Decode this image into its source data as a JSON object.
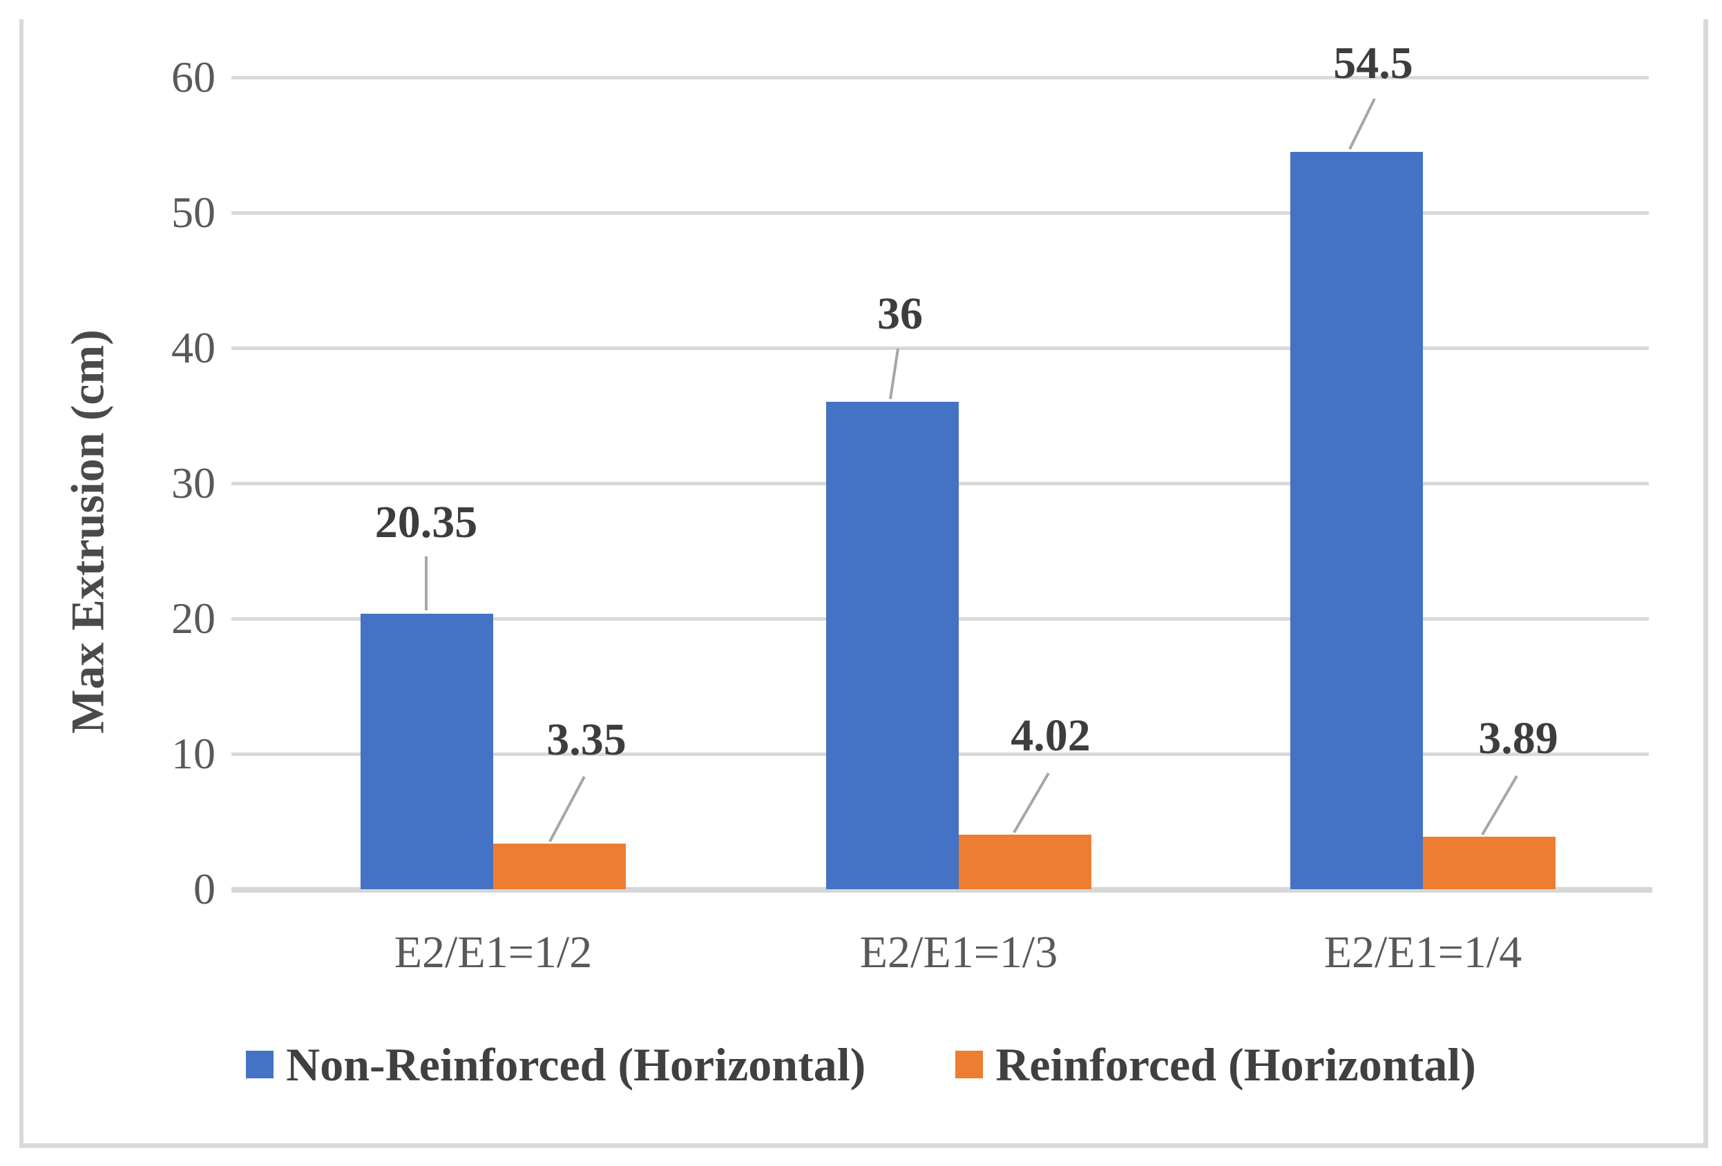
{
  "chart_data": {
    "type": "bar",
    "title": "",
    "categories": [
      "E2/E1=1/2",
      "E2/E1=1/3",
      "E2/E1=1/4"
    ],
    "series": [
      {
        "name": "Non-Reinforced (Horizontal)",
        "color": "#4472C4",
        "values": [
          20.35,
          36,
          54.5
        ],
        "value_labels": [
          "20.35",
          "36",
          "54.5"
        ]
      },
      {
        "name": "Reinforced (Horizontal)",
        "color": "#ED7D31",
        "values": [
          3.35,
          4.02,
          3.89
        ],
        "value_labels": [
          "3.35",
          "4.02",
          "3.89"
        ]
      }
    ],
    "xlabel": "",
    "ylabel": "Max Extrusion (cm)",
    "ylim": [
      0,
      60
    ],
    "yticks": [
      0,
      10,
      20,
      30,
      40,
      50,
      60
    ],
    "grid": "horizontal-only",
    "legend_position": "bottom"
  },
  "style": {
    "gridline_color": "#d9d9d9",
    "axis_line_color": "#d6d6d6",
    "leader_line_color": "#a6a6a6",
    "tick_label_color": "#595959",
    "data_label_color": "#3d3d3d",
    "legend_text_color": "#404040",
    "series_blue": "#4472C4",
    "series_orange": "#ED7D31"
  }
}
